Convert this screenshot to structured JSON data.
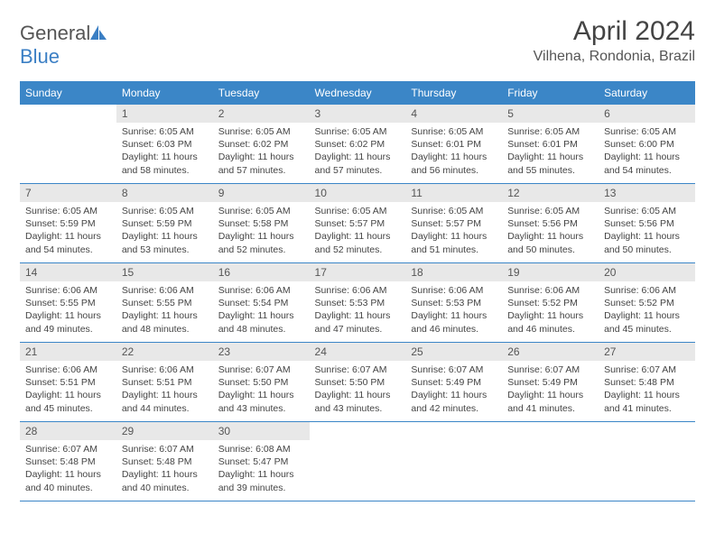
{
  "logo": {
    "text_part1": "General",
    "text_part2": "Blue",
    "icon_fill": "#3b7fc4"
  },
  "header": {
    "month_title": "April 2024",
    "location": "Vilhena, Rondonia, Brazil"
  },
  "styling": {
    "header_bg": "#3b86c7",
    "header_text": "#ffffff",
    "daynum_bg": "#e8e8e8",
    "border_color": "#3b86c7",
    "body_text": "#444444"
  },
  "weekdays": [
    "Sunday",
    "Monday",
    "Tuesday",
    "Wednesday",
    "Thursday",
    "Friday",
    "Saturday"
  ],
  "weeks": [
    [
      {
        "empty": true
      },
      {
        "day": "1",
        "sunrise": "Sunrise: 6:05 AM",
        "sunset": "Sunset: 6:03 PM",
        "daylight": "Daylight: 11 hours and 58 minutes."
      },
      {
        "day": "2",
        "sunrise": "Sunrise: 6:05 AM",
        "sunset": "Sunset: 6:02 PM",
        "daylight": "Daylight: 11 hours and 57 minutes."
      },
      {
        "day": "3",
        "sunrise": "Sunrise: 6:05 AM",
        "sunset": "Sunset: 6:02 PM",
        "daylight": "Daylight: 11 hours and 57 minutes."
      },
      {
        "day": "4",
        "sunrise": "Sunrise: 6:05 AM",
        "sunset": "Sunset: 6:01 PM",
        "daylight": "Daylight: 11 hours and 56 minutes."
      },
      {
        "day": "5",
        "sunrise": "Sunrise: 6:05 AM",
        "sunset": "Sunset: 6:01 PM",
        "daylight": "Daylight: 11 hours and 55 minutes."
      },
      {
        "day": "6",
        "sunrise": "Sunrise: 6:05 AM",
        "sunset": "Sunset: 6:00 PM",
        "daylight": "Daylight: 11 hours and 54 minutes."
      }
    ],
    [
      {
        "day": "7",
        "sunrise": "Sunrise: 6:05 AM",
        "sunset": "Sunset: 5:59 PM",
        "daylight": "Daylight: 11 hours and 54 minutes."
      },
      {
        "day": "8",
        "sunrise": "Sunrise: 6:05 AM",
        "sunset": "Sunset: 5:59 PM",
        "daylight": "Daylight: 11 hours and 53 minutes."
      },
      {
        "day": "9",
        "sunrise": "Sunrise: 6:05 AM",
        "sunset": "Sunset: 5:58 PM",
        "daylight": "Daylight: 11 hours and 52 minutes."
      },
      {
        "day": "10",
        "sunrise": "Sunrise: 6:05 AM",
        "sunset": "Sunset: 5:57 PM",
        "daylight": "Daylight: 11 hours and 52 minutes."
      },
      {
        "day": "11",
        "sunrise": "Sunrise: 6:05 AM",
        "sunset": "Sunset: 5:57 PM",
        "daylight": "Daylight: 11 hours and 51 minutes."
      },
      {
        "day": "12",
        "sunrise": "Sunrise: 6:05 AM",
        "sunset": "Sunset: 5:56 PM",
        "daylight": "Daylight: 11 hours and 50 minutes."
      },
      {
        "day": "13",
        "sunrise": "Sunrise: 6:05 AM",
        "sunset": "Sunset: 5:56 PM",
        "daylight": "Daylight: 11 hours and 50 minutes."
      }
    ],
    [
      {
        "day": "14",
        "sunrise": "Sunrise: 6:06 AM",
        "sunset": "Sunset: 5:55 PM",
        "daylight": "Daylight: 11 hours and 49 minutes."
      },
      {
        "day": "15",
        "sunrise": "Sunrise: 6:06 AM",
        "sunset": "Sunset: 5:55 PM",
        "daylight": "Daylight: 11 hours and 48 minutes."
      },
      {
        "day": "16",
        "sunrise": "Sunrise: 6:06 AM",
        "sunset": "Sunset: 5:54 PM",
        "daylight": "Daylight: 11 hours and 48 minutes."
      },
      {
        "day": "17",
        "sunrise": "Sunrise: 6:06 AM",
        "sunset": "Sunset: 5:53 PM",
        "daylight": "Daylight: 11 hours and 47 minutes."
      },
      {
        "day": "18",
        "sunrise": "Sunrise: 6:06 AM",
        "sunset": "Sunset: 5:53 PM",
        "daylight": "Daylight: 11 hours and 46 minutes."
      },
      {
        "day": "19",
        "sunrise": "Sunrise: 6:06 AM",
        "sunset": "Sunset: 5:52 PM",
        "daylight": "Daylight: 11 hours and 46 minutes."
      },
      {
        "day": "20",
        "sunrise": "Sunrise: 6:06 AM",
        "sunset": "Sunset: 5:52 PM",
        "daylight": "Daylight: 11 hours and 45 minutes."
      }
    ],
    [
      {
        "day": "21",
        "sunrise": "Sunrise: 6:06 AM",
        "sunset": "Sunset: 5:51 PM",
        "daylight": "Daylight: 11 hours and 45 minutes."
      },
      {
        "day": "22",
        "sunrise": "Sunrise: 6:06 AM",
        "sunset": "Sunset: 5:51 PM",
        "daylight": "Daylight: 11 hours and 44 minutes."
      },
      {
        "day": "23",
        "sunrise": "Sunrise: 6:07 AM",
        "sunset": "Sunset: 5:50 PM",
        "daylight": "Daylight: 11 hours and 43 minutes."
      },
      {
        "day": "24",
        "sunrise": "Sunrise: 6:07 AM",
        "sunset": "Sunset: 5:50 PM",
        "daylight": "Daylight: 11 hours and 43 minutes."
      },
      {
        "day": "25",
        "sunrise": "Sunrise: 6:07 AM",
        "sunset": "Sunset: 5:49 PM",
        "daylight": "Daylight: 11 hours and 42 minutes."
      },
      {
        "day": "26",
        "sunrise": "Sunrise: 6:07 AM",
        "sunset": "Sunset: 5:49 PM",
        "daylight": "Daylight: 11 hours and 41 minutes."
      },
      {
        "day": "27",
        "sunrise": "Sunrise: 6:07 AM",
        "sunset": "Sunset: 5:48 PM",
        "daylight": "Daylight: 11 hours and 41 minutes."
      }
    ],
    [
      {
        "day": "28",
        "sunrise": "Sunrise: 6:07 AM",
        "sunset": "Sunset: 5:48 PM",
        "daylight": "Daylight: 11 hours and 40 minutes."
      },
      {
        "day": "29",
        "sunrise": "Sunrise: 6:07 AM",
        "sunset": "Sunset: 5:48 PM",
        "daylight": "Daylight: 11 hours and 40 minutes."
      },
      {
        "day": "30",
        "sunrise": "Sunrise: 6:08 AM",
        "sunset": "Sunset: 5:47 PM",
        "daylight": "Daylight: 11 hours and 39 minutes."
      },
      {
        "empty": true
      },
      {
        "empty": true
      },
      {
        "empty": true
      },
      {
        "empty": true
      }
    ]
  ]
}
